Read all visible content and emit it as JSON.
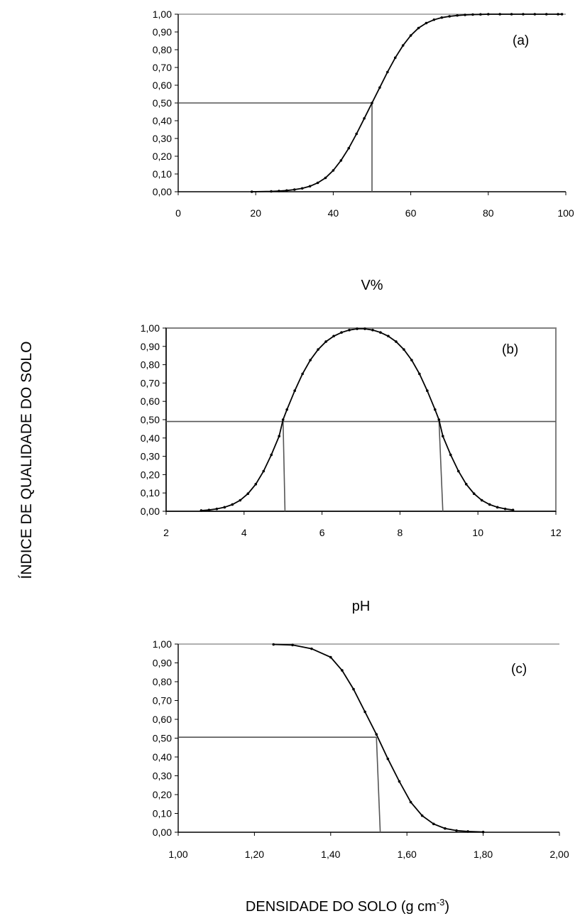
{
  "figure": {
    "shared_ylabel": "ÍNDICE DE QUALIDADE DO SOLO"
  },
  "chart_data": [
    {
      "type": "line",
      "panel_label": "(a)",
      "xlabel": "V%",
      "ylabel": "",
      "xlim": [
        0,
        100
      ],
      "ylim": [
        0,
        1
      ],
      "xticks": [
        0,
        20,
        40,
        60,
        80,
        100
      ],
      "xtick_labels": [
        "0",
        "20",
        "40",
        "60",
        "80",
        "100"
      ],
      "yticks": [
        0,
        0.1,
        0.2,
        0.3,
        0.4,
        0.5,
        0.6,
        0.7,
        0.8,
        0.9,
        1.0
      ],
      "ytick_labels": [
        "0,00",
        "0,10",
        "0,20",
        "0,30",
        "0,40",
        "0,50",
        "0,60",
        "0,70",
        "0,80",
        "0,90",
        "1,00"
      ],
      "grid": false,
      "frame": "axes",
      "curve": {
        "markers": true,
        "x": [
          19,
          24,
          26,
          28,
          30,
          32,
          34,
          36,
          38,
          40,
          42,
          44,
          46,
          48,
          50,
          52,
          54,
          56,
          58,
          60,
          62,
          64,
          66,
          68,
          70,
          72,
          74,
          76,
          78,
          80,
          83,
          86,
          89,
          92,
          95,
          98,
          99
        ],
        "y": [
          0.0,
          0.002,
          0.004,
          0.007,
          0.012,
          0.019,
          0.031,
          0.05,
          0.078,
          0.12,
          0.176,
          0.245,
          0.326,
          0.413,
          0.5,
          0.587,
          0.674,
          0.755,
          0.824,
          0.88,
          0.922,
          0.95,
          0.969,
          0.981,
          0.988,
          0.993,
          0.996,
          0.998,
          0.999,
          1.0,
          1.0,
          1.0,
          1.0,
          1.0,
          1.0,
          1.0,
          1.0
        ]
      },
      "reference_lines": [
        {
          "from": [
            0,
            0.5
          ],
          "to": [
            50,
            0.5
          ]
        },
        {
          "from": [
            50,
            0.5
          ],
          "to": [
            50,
            0
          ]
        }
      ]
    },
    {
      "type": "line",
      "panel_label": "(b)",
      "xlabel": "pH",
      "ylabel": "",
      "xlim": [
        2,
        12
      ],
      "ylim": [
        0,
        1
      ],
      "xticks": [
        2,
        4,
        6,
        8,
        10,
        12
      ],
      "xtick_labels": [
        "2",
        "4",
        "6",
        "8",
        "10",
        "12"
      ],
      "yticks": [
        0,
        0.1,
        0.2,
        0.3,
        0.4,
        0.5,
        0.6,
        0.7,
        0.8,
        0.9,
        1.0
      ],
      "ytick_labels": [
        "0,00",
        "0,10",
        "0,20",
        "0,30",
        "0,40",
        "0,50",
        "0,60",
        "0,70",
        "0,80",
        "0,90",
        "1,00"
      ],
      "grid": false,
      "frame": "box",
      "curve": {
        "markers": true,
        "x": [
          2.9,
          3.1,
          3.3,
          3.5,
          3.7,
          3.9,
          4.1,
          4.3,
          4.5,
          4.7,
          4.9,
          5.0,
          5.1,
          5.3,
          5.5,
          5.7,
          5.9,
          6.1,
          6.3,
          6.5,
          6.7,
          6.9,
          7.1,
          7.3,
          7.5,
          7.7,
          7.9,
          8.1,
          8.3,
          8.5,
          8.7,
          8.9,
          9.0,
          9.1,
          9.3,
          9.5,
          9.7,
          9.9,
          10.1,
          10.3,
          10.5,
          10.7,
          10.9
        ],
        "y": [
          0.004,
          0.007,
          0.013,
          0.022,
          0.037,
          0.06,
          0.096,
          0.148,
          0.219,
          0.308,
          0.41,
          0.5,
          0.555,
          0.658,
          0.75,
          0.825,
          0.883,
          0.926,
          0.956,
          0.976,
          0.989,
          0.996,
          0.996,
          0.989,
          0.976,
          0.956,
          0.926,
          0.883,
          0.825,
          0.75,
          0.658,
          0.555,
          0.5,
          0.41,
          0.308,
          0.219,
          0.148,
          0.096,
          0.06,
          0.037,
          0.022,
          0.013,
          0.007
        ]
      },
      "reference_lines": [
        {
          "from": [
            2,
            0.49
          ],
          "to": [
            12,
            0.49
          ]
        },
        {
          "from": [
            5.0,
            0.5
          ],
          "to": [
            5.05,
            0
          ]
        },
        {
          "from": [
            9.0,
            0.5
          ],
          "to": [
            9.1,
            0
          ]
        }
      ]
    },
    {
      "type": "line",
      "panel_label": "(c)",
      "xlabel": "DENSIDADE DO SOLO (g cm",
      "xlabel_superscript": "-3",
      "xlabel_suffix": ")",
      "ylabel": "",
      "xlim": [
        1.0,
        2.0
      ],
      "ylim": [
        0,
        1
      ],
      "xticks": [
        1.0,
        1.2,
        1.4,
        1.6,
        1.8,
        2.0
      ],
      "xtick_labels": [
        "1,00",
        "1,20",
        "1,40",
        "1,60",
        "1,80",
        "2,00"
      ],
      "yticks": [
        0,
        0.1,
        0.2,
        0.3,
        0.4,
        0.5,
        0.6,
        0.7,
        0.8,
        0.9,
        1.0
      ],
      "ytick_labels": [
        "0,00",
        "0,10",
        "0,20",
        "0,30",
        "0,40",
        "0,50",
        "0,60",
        "0,70",
        "0,80",
        "0,90",
        "1,00"
      ],
      "grid": false,
      "frame": "axes",
      "curve": {
        "markers": true,
        "x": [
          1.25,
          1.3,
          1.35,
          1.4,
          1.43,
          1.46,
          1.49,
          1.52,
          1.55,
          1.58,
          1.61,
          1.64,
          1.67,
          1.7,
          1.73,
          1.76,
          1.8
        ],
        "y": [
          0.998,
          0.995,
          0.975,
          0.93,
          0.86,
          0.76,
          0.64,
          0.52,
          0.39,
          0.27,
          0.16,
          0.088,
          0.044,
          0.02,
          0.009,
          0.004,
          0.001
        ]
      },
      "reference_lines": [
        {
          "from": [
            1.0,
            0.505
          ],
          "to": [
            1.52,
            0.505
          ]
        },
        {
          "from": [
            1.52,
            0.505
          ],
          "to": [
            1.53,
            0
          ]
        }
      ]
    }
  ]
}
